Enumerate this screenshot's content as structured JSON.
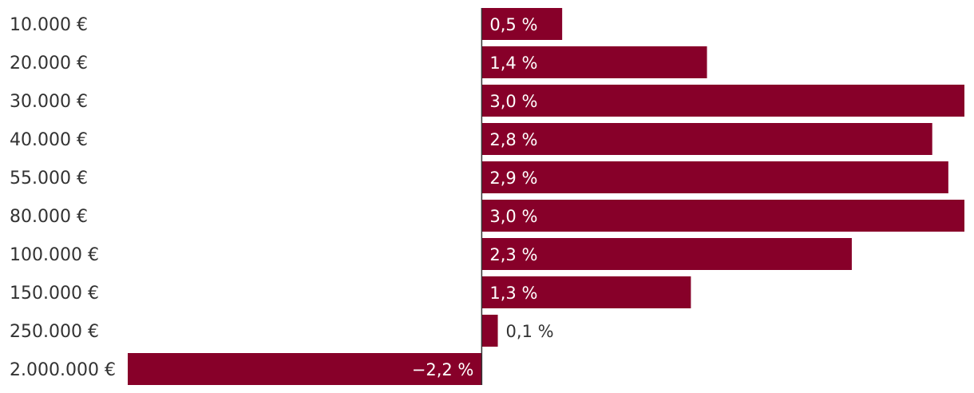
{
  "chart_data": {
    "type": "bar",
    "orientation": "horizontal",
    "categories": [
      "10.000 €",
      "20.000 €",
      "30.000 €",
      "40.000 €",
      "55.000 €",
      "80.000 €",
      "100.000 €",
      "150.000 €",
      "250.000 €",
      "2.000.000 €"
    ],
    "values": [
      0.5,
      1.4,
      3.0,
      2.8,
      2.9,
      3.0,
      2.3,
      1.3,
      0.1,
      -2.2
    ],
    "value_labels": [
      "0,5 %",
      "1,4 %",
      "3,0 %",
      "2,8 %",
      "2,9 %",
      "3,0 %",
      "2,3 %",
      "1,3 %",
      "0,1 %",
      "−2,2 %"
    ],
    "xlim": [
      -2.2,
      3.0
    ],
    "bar_color": "#870029",
    "label_inside_color": "#ffffff",
    "label_outside_color": "#333333",
    "category_color": "#333333",
    "grid": false,
    "legend": "none"
  }
}
